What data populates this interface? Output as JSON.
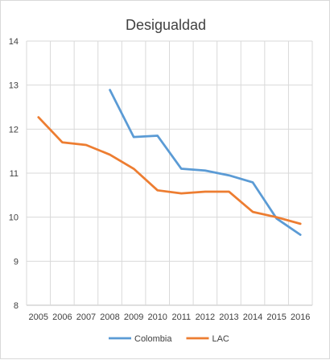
{
  "chart_data": {
    "type": "line",
    "title": "Desigualdad",
    "xlabel": "",
    "ylabel": "",
    "categories": [
      "2005",
      "2006",
      "2007",
      "2008",
      "2009",
      "2010",
      "2011",
      "2012",
      "2013",
      "2014",
      "2015",
      "2016"
    ],
    "ylim": [
      8,
      14
    ],
    "yticks": [
      "8",
      "9",
      "10",
      "11",
      "12",
      "13",
      "14"
    ],
    "grid": true,
    "legend": "bottom",
    "series": [
      {
        "name": "Colombia",
        "color": "#5b9bd5",
        "values": [
          null,
          null,
          null,
          12.89,
          11.82,
          11.85,
          11.1,
          11.06,
          10.95,
          10.79,
          9.97,
          9.6
        ]
      },
      {
        "name": "LAC",
        "color": "#ed7d31",
        "values": [
          12.27,
          11.7,
          11.64,
          11.42,
          11.1,
          10.61,
          10.54,
          10.58,
          10.58,
          10.12,
          10.0,
          9.85
        ]
      }
    ]
  }
}
